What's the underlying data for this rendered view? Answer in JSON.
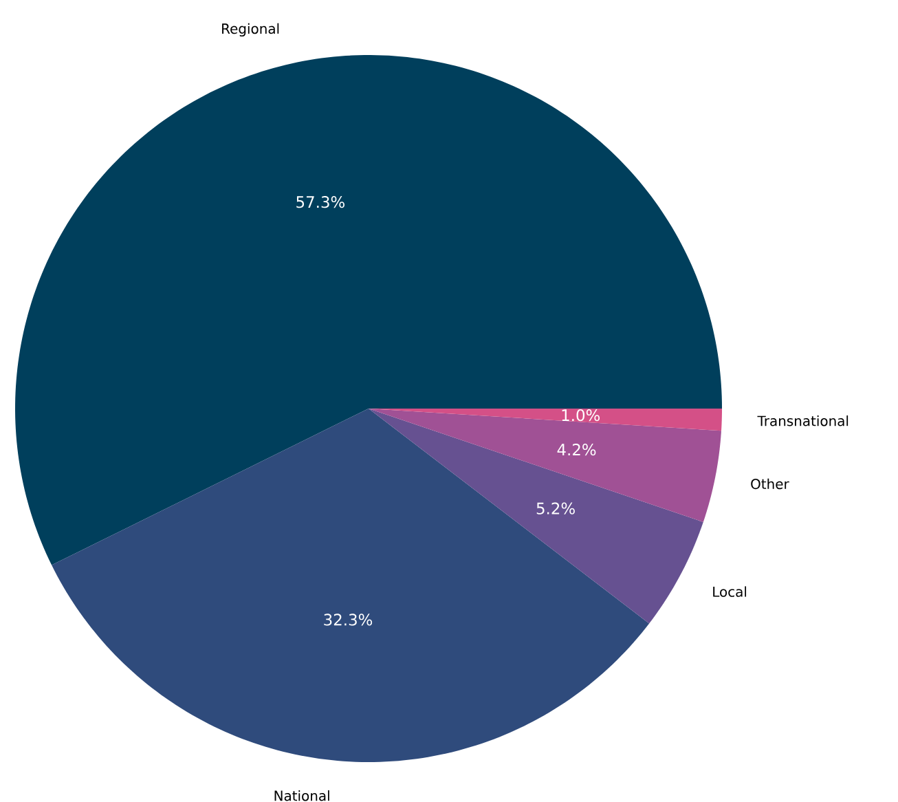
{
  "chart_data": {
    "type": "pie",
    "categories": [
      "Regional",
      "National",
      "Local",
      "Other",
      "Transnational"
    ],
    "values": [
      57.3,
      32.3,
      5.2,
      4.2,
      1.0
    ],
    "value_labels": [
      "57.3%",
      "32.3%",
      "5.2%",
      "4.2%",
      "1.0%"
    ],
    "colors": [
      "#003f5c",
      "#2f4b7c",
      "#665191",
      "#a05195",
      "#d45087"
    ]
  }
}
